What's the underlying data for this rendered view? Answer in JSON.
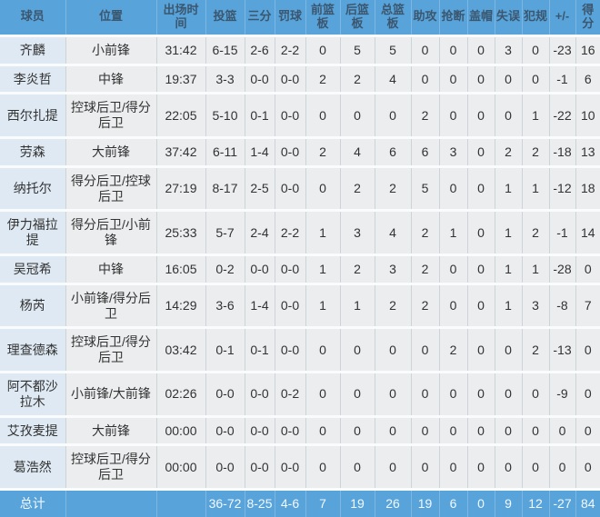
{
  "table": {
    "columns": [
      {
        "key": "player",
        "label": "球员"
      },
      {
        "key": "position",
        "label": "位置"
      },
      {
        "key": "minutes",
        "label": "出场时间"
      },
      {
        "key": "fg",
        "label": "投篮"
      },
      {
        "key": "three",
        "label": "三分"
      },
      {
        "key": "ft",
        "label": "罚球"
      },
      {
        "key": "oreb",
        "label": "前篮板"
      },
      {
        "key": "dreb",
        "label": "后篮板"
      },
      {
        "key": "treb",
        "label": "总篮板"
      },
      {
        "key": "ast",
        "label": "助攻"
      },
      {
        "key": "stl",
        "label": "抢断"
      },
      {
        "key": "blk",
        "label": "盖帽"
      },
      {
        "key": "tov",
        "label": "失误"
      },
      {
        "key": "pf",
        "label": "犯规"
      },
      {
        "key": "plusminus",
        "label": "+/-"
      },
      {
        "key": "pts",
        "label": "得分"
      }
    ],
    "players": [
      {
        "player": "齐麟",
        "position": "小前锋",
        "minutes": "31:42",
        "fg": "6-15",
        "three": "2-6",
        "ft": "2-2",
        "oreb": "0",
        "dreb": "5",
        "treb": "5",
        "ast": "0",
        "stl": "0",
        "blk": "0",
        "tov": "3",
        "pf": "0",
        "plusminus": "-23",
        "pts": "16"
      },
      {
        "player": "李炎哲",
        "position": "中锋",
        "minutes": "19:37",
        "fg": "3-3",
        "three": "0-0",
        "ft": "0-0",
        "oreb": "2",
        "dreb": "2",
        "treb": "4",
        "ast": "0",
        "stl": "0",
        "blk": "0",
        "tov": "0",
        "pf": "0",
        "plusminus": "-1",
        "pts": "6"
      },
      {
        "player": "西尔扎提",
        "position": "控球后卫/得分后卫",
        "minutes": "22:05",
        "fg": "5-10",
        "three": "0-1",
        "ft": "0-0",
        "oreb": "0",
        "dreb": "0",
        "treb": "0",
        "ast": "2",
        "stl": "0",
        "blk": "0",
        "tov": "0",
        "pf": "1",
        "plusminus": "-22",
        "pts": "10"
      },
      {
        "player": "劳森",
        "position": "大前锋",
        "minutes": "37:42",
        "fg": "6-11",
        "three": "1-4",
        "ft": "0-0",
        "oreb": "2",
        "dreb": "4",
        "treb": "6",
        "ast": "6",
        "stl": "3",
        "blk": "0",
        "tov": "2",
        "pf": "2",
        "plusminus": "-18",
        "pts": "13"
      },
      {
        "player": "纳托尔",
        "position": "得分后卫/控球后卫",
        "minutes": "27:19",
        "fg": "8-17",
        "three": "2-5",
        "ft": "0-0",
        "oreb": "0",
        "dreb": "2",
        "treb": "2",
        "ast": "5",
        "stl": "0",
        "blk": "0",
        "tov": "1",
        "pf": "1",
        "plusminus": "-12",
        "pts": "18"
      },
      {
        "player": "伊力福拉提",
        "position": "得分后卫/小前锋",
        "minutes": "25:33",
        "fg": "5-7",
        "three": "2-4",
        "ft": "2-2",
        "oreb": "1",
        "dreb": "3",
        "treb": "4",
        "ast": "2",
        "stl": "1",
        "blk": "0",
        "tov": "1",
        "pf": "2",
        "plusminus": "-1",
        "pts": "14"
      },
      {
        "player": "吴冠希",
        "position": "中锋",
        "minutes": "16:05",
        "fg": "0-2",
        "three": "0-0",
        "ft": "0-0",
        "oreb": "1",
        "dreb": "2",
        "treb": "3",
        "ast": "2",
        "stl": "0",
        "blk": "0",
        "tov": "1",
        "pf": "1",
        "plusminus": "-28",
        "pts": "0"
      },
      {
        "player": "杨芮",
        "position": "小前锋/得分后卫",
        "minutes": "14:29",
        "fg": "3-6",
        "three": "1-4",
        "ft": "0-0",
        "oreb": "1",
        "dreb": "1",
        "treb": "2",
        "ast": "2",
        "stl": "0",
        "blk": "0",
        "tov": "1",
        "pf": "3",
        "plusminus": "-8",
        "pts": "7"
      },
      {
        "player": "理查德森",
        "position": "控球后卫/得分后卫",
        "minutes": "03:42",
        "fg": "0-1",
        "three": "0-1",
        "ft": "0-0",
        "oreb": "0",
        "dreb": "0",
        "treb": "0",
        "ast": "0",
        "stl": "2",
        "blk": "0",
        "tov": "0",
        "pf": "2",
        "plusminus": "-13",
        "pts": "0"
      },
      {
        "player": "阿不都沙拉木",
        "position": "小前锋/大前锋",
        "minutes": "02:26",
        "fg": "0-0",
        "three": "0-0",
        "ft": "0-2",
        "oreb": "0",
        "dreb": "0",
        "treb": "0",
        "ast": "0",
        "stl": "0",
        "blk": "0",
        "tov": "0",
        "pf": "0",
        "plusminus": "-9",
        "pts": "0"
      },
      {
        "player": "艾孜麦提",
        "position": "大前锋",
        "minutes": "00:00",
        "fg": "0-0",
        "three": "0-0",
        "ft": "0-0",
        "oreb": "0",
        "dreb": "0",
        "treb": "0",
        "ast": "0",
        "stl": "0",
        "blk": "0",
        "tov": "0",
        "pf": "0",
        "plusminus": "0",
        "pts": "0"
      },
      {
        "player": "葛浩然",
        "position": "控球后卫/得分后卫",
        "minutes": "00:00",
        "fg": "0-0",
        "three": "0-0",
        "ft": "0-0",
        "oreb": "0",
        "dreb": "0",
        "treb": "0",
        "ast": "0",
        "stl": "0",
        "blk": "0",
        "tov": "0",
        "pf": "0",
        "plusminus": "0",
        "pts": "0"
      }
    ],
    "total": {
      "player": "总计",
      "position": "",
      "minutes": "",
      "fg": "36-72",
      "three": "8-25",
      "ft": "4-6",
      "oreb": "7",
      "dreb": "19",
      "treb": "26",
      "ast": "19",
      "stl": "6",
      "blk": "0",
      "tov": "9",
      "pf": "12",
      "plusminus": "-27",
      "pts": "84"
    }
  },
  "colors": {
    "header_bg": "#58a4da",
    "header_text": "#3b566e",
    "total_bg": "#58a4da",
    "total_text": "#f2f8fd",
    "player_col_bg": "#dfe9f3",
    "cell_bg": "#ebedef",
    "cell_text": "#323232"
  }
}
